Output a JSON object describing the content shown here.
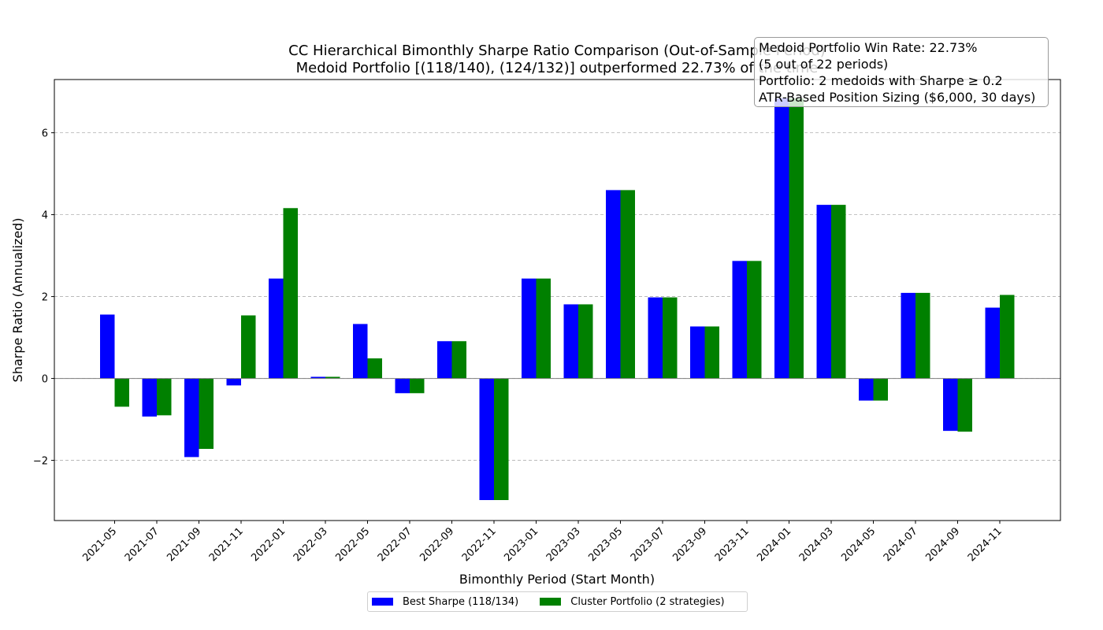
{
  "chart_data": {
    "type": "bar",
    "title": "CC Hierarchical Bimonthly Sharpe Ratio Comparison (Out-of-Sample Period)",
    "subtitle": "Medoid Portfolio [(118/140), (124/132)] outperformed 22.73% of the time",
    "xlabel": "Bimonthly Period (Start Month)",
    "ylabel": "Sharpe Ratio (Annualized)",
    "ylim": [
      -3.47,
      7.3
    ],
    "yticks": [
      -2,
      0,
      2,
      4,
      6
    ],
    "ytick_labels": [
      "−2",
      "0",
      "2",
      "4",
      "6"
    ],
    "grid": true,
    "legend_position": "bottom-center",
    "categories": [
      "2021-05",
      "2021-07",
      "2021-09",
      "2021-11",
      "2022-01",
      "2022-03",
      "2022-05",
      "2022-07",
      "2022-09",
      "2022-11",
      "2023-01",
      "2023-03",
      "2023-05",
      "2023-07",
      "2023-09",
      "2023-11",
      "2024-01",
      "2024-03",
      "2024-05",
      "2024-07",
      "2024-09",
      "2024-11"
    ],
    "series": [
      {
        "name": "Best Sharpe (118/134)",
        "color": "#0000ff",
        "values": [
          1.56,
          -0.93,
          -1.92,
          -0.17,
          2.44,
          0.04,
          1.33,
          -0.36,
          0.91,
          -2.97,
          2.44,
          1.81,
          4.6,
          1.98,
          1.27,
          2.87,
          6.84,
          4.24,
          -0.54,
          2.09,
          -1.28,
          1.73
        ]
      },
      {
        "name": "Cluster Portfolio (2 strategies)",
        "color": "#008000",
        "values": [
          -0.69,
          -0.9,
          -1.72,
          1.54,
          4.16,
          0.04,
          0.49,
          -0.36,
          0.91,
          -2.97,
          2.44,
          1.81,
          4.6,
          1.98,
          1.27,
          2.87,
          6.84,
          4.24,
          -0.54,
          2.09,
          -1.3,
          2.04
        ]
      }
    ]
  },
  "info_box": {
    "line1": "Medoid Portfolio Win Rate: 22.73%",
    "line2": "(5 out of 22 periods)",
    "line3": "Portfolio: 2 medoids with Sharpe ≥ 0.2",
    "line4": "ATR-Based Position Sizing ($6,000, 30 days)"
  }
}
